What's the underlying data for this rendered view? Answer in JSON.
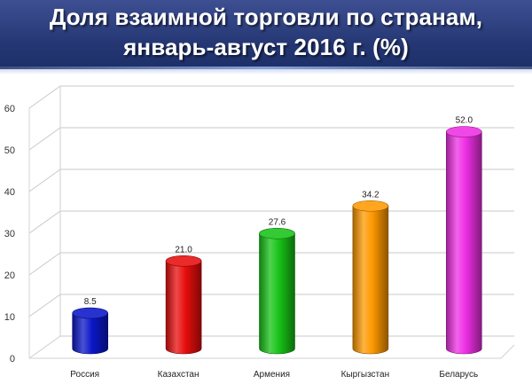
{
  "header": {
    "title_line1": "Доля взаимной торговли по странам,",
    "title_line2": "январь-август 2016 г. (%)"
  },
  "chart_data": {
    "type": "bar",
    "style": "3d cylinders",
    "title": "Доля взаимной торговли по странам, январь-август 2016 г. (%)",
    "categories": [
      "Россия",
      "Казахстан",
      "Армения",
      "Кыргызстан",
      "Беларусь"
    ],
    "values": [
      8.5,
      21.0,
      27.6,
      34.2,
      52.0
    ],
    "data_labels": [
      "8.5",
      "21.0",
      "27.6",
      "34.2",
      "52.0"
    ],
    "colors": [
      "#0b17c9",
      "#e80d0d",
      "#17c317",
      "#ff9900",
      "#ee2fe4"
    ],
    "ylim": [
      0,
      60
    ],
    "yticks": [
      0,
      10,
      20,
      30,
      40,
      50,
      60
    ],
    "grid": true,
    "legend": "none"
  }
}
